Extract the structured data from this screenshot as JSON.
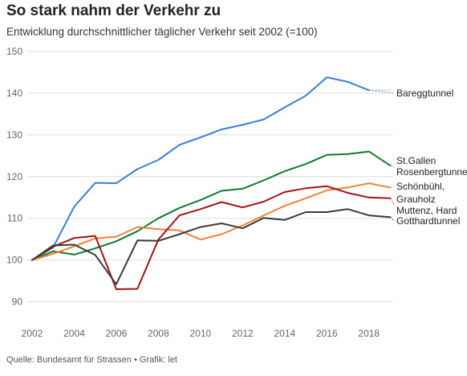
{
  "header": {
    "title": "So stark nahm der Verkehr zu",
    "subtitle": "Entwicklung durchschnittlicher täglicher Verkehr seit 2002 (=100)"
  },
  "footer": {
    "source": "Quelle: Bundesamt für Strassen • Grafik: let"
  },
  "chart_data": {
    "type": "line",
    "title": "So stark nahm der Verkehr zu",
    "subtitle": "Entwicklung durchschnittlicher täglicher Verkehr seit 2002 (=100)",
    "xlabel": "",
    "ylabel": "",
    "xlim": [
      2002,
      2019
    ],
    "ylim": [
      88,
      150
    ],
    "x_ticks": [
      2002,
      2004,
      2006,
      2008,
      2010,
      2012,
      2014,
      2016,
      2018
    ],
    "y_ticks": [
      90,
      100,
      110,
      120,
      130,
      140,
      150
    ],
    "grid": "horizontal",
    "legend": "direct labels at line ends (right)",
    "x": [
      2002,
      2003,
      2004,
      2005,
      2006,
      2007,
      2008,
      2009,
      2010,
      2011,
      2012,
      2013,
      2014,
      2015,
      2016,
      2017,
      2018,
      2019
    ],
    "series": [
      {
        "name": "Bareggtunnel",
        "color": "#3b7dd8",
        "values": [
          100,
          103,
          112.8,
          118.5,
          118.4,
          121.8,
          124,
          127.6,
          129.4,
          131.3,
          132.4,
          133.7,
          136.6,
          139.4,
          143.8,
          142.7,
          140.7,
          null
        ],
        "dotted_extension_to": 2019
      },
      {
        "name": "St.Gallen\nRosenbergtunnel",
        "label_lines": [
          "St.Gallen",
          "Rosenbergtunnel"
        ],
        "color": "#0f7a2c",
        "values": [
          100,
          102.1,
          101.3,
          102.8,
          104.5,
          106.9,
          110,
          112.5,
          114.4,
          116.6,
          117.1,
          119.1,
          121.3,
          123,
          125.2,
          125.4,
          126,
          122.7
        ]
      },
      {
        "name": "Schönbühl,",
        "label_lines": [
          "Schönbühl,"
        ],
        "color": "#f0813a",
        "values": [
          100,
          101.5,
          103.3,
          105.2,
          105.6,
          107.9,
          107.4,
          107.1,
          104.9,
          106.2,
          108.3,
          110.7,
          113,
          114.8,
          116.7,
          117.4,
          118.4,
          117.4
        ]
      },
      {
        "name": "Grauholz\nMuttenz, Hard",
        "label_lines": [
          "Grauholz",
          "Muttenz, Hard"
        ],
        "color": "#a11414",
        "values": [
          100,
          103.2,
          105.3,
          105.8,
          93,
          93.1,
          104.9,
          110.7,
          112.2,
          113.9,
          112.6,
          114,
          116.3,
          117.2,
          117.7,
          116.1,
          115,
          114.8
        ]
      },
      {
        "name": "Gotthardtunnel",
        "color": "#3a3a3a",
        "values": [
          100,
          103.5,
          103.7,
          101.2,
          94.2,
          104.7,
          104.6,
          106.2,
          107.9,
          108.8,
          107.6,
          110.1,
          109.6,
          111.5,
          111.5,
          112.2,
          110.7,
          110.3
        ]
      }
    ]
  }
}
